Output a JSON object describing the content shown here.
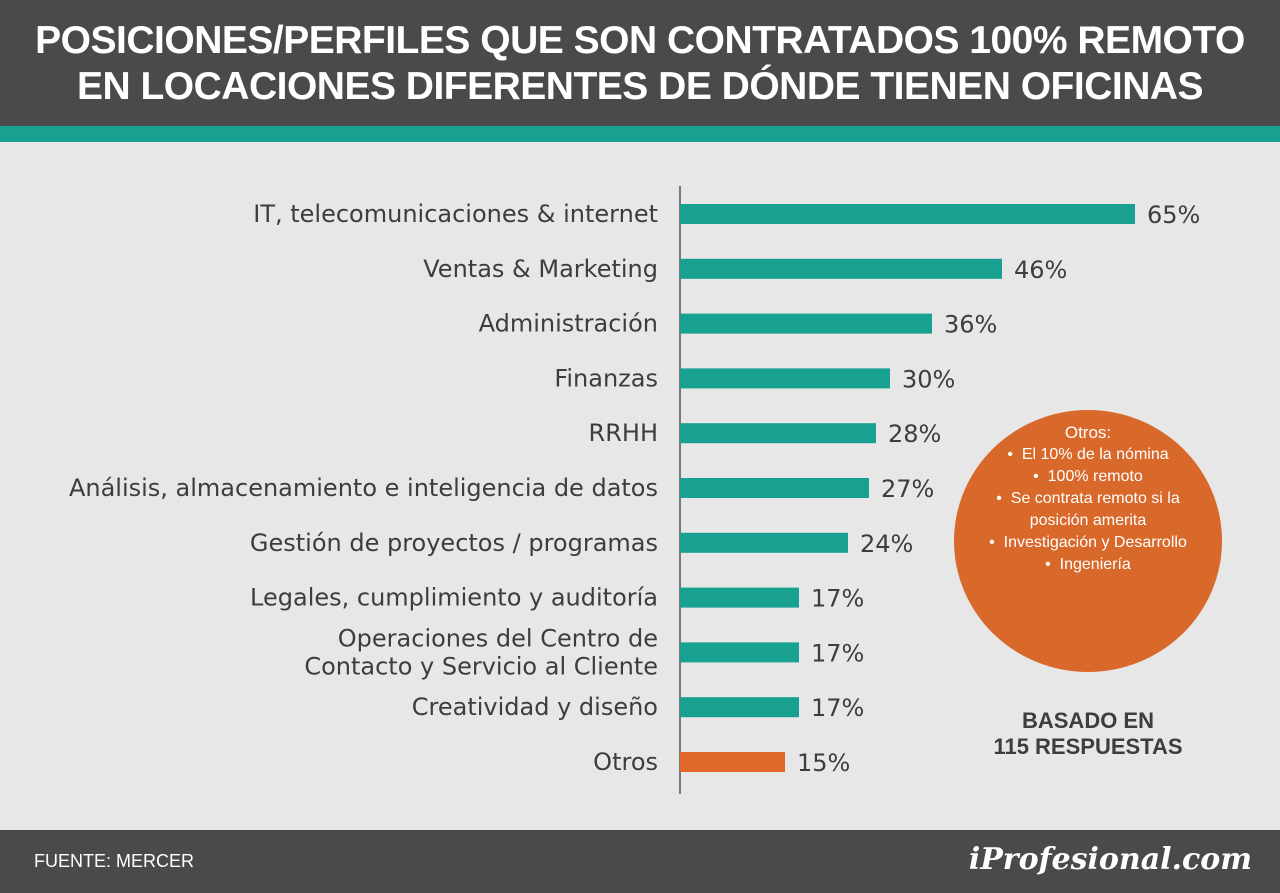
{
  "header": {
    "title_line1": "POSICIONES/PERFILES QUE SON CONTRATADOS 100% REMOTO",
    "title_line2": "EN LOCACIONES DIFERENTES DE DÓNDE TIENEN OFICINAS"
  },
  "chart_data": {
    "type": "bar",
    "orientation": "horizontal",
    "categories": [
      "IT, telecomunicaciones & internet",
      "Ventas & Marketing",
      "Administración",
      "Finanzas",
      "RRHH",
      "Análisis, almacenamiento e inteligencia de datos",
      "Gestión de proyectos / programas",
      "Legales, cumplimiento y auditoría",
      "Operaciones del Centro de Contacto y Servicio al Cliente",
      "Creatividad y diseño",
      "Otros"
    ],
    "category_lines": [
      [
        "IT, telecomunicaciones & internet"
      ],
      [
        "Ventas & Marketing"
      ],
      [
        "Administración"
      ],
      [
        "Finanzas"
      ],
      [
        "RRHH"
      ],
      [
        "Análisis, almacenamiento e inteligencia de datos"
      ],
      [
        "Gestión de proyectos / programas"
      ],
      [
        "Legales, cumplimiento y auditoría"
      ],
      [
        "Operaciones del Centro de",
        "Contacto y Servicio al Cliente"
      ],
      [
        "Creatividad y diseño"
      ],
      [
        "Otros"
      ]
    ],
    "values": [
      65,
      46,
      36,
      30,
      28,
      27,
      24,
      17,
      17,
      17,
      15
    ],
    "value_labels": [
      "65%",
      "46%",
      "36%",
      "30%",
      "28%",
      "27%",
      "24%",
      "17%",
      "17%",
      "17%",
      "15%"
    ],
    "bar_colors": [
      "#18a090",
      "#18a090",
      "#18a090",
      "#18a090",
      "#18a090",
      "#18a090",
      "#18a090",
      "#18a090",
      "#18a090",
      "#18a090",
      "#e0692a"
    ],
    "xlim": [
      0,
      65
    ],
    "grid": false,
    "legend": "none"
  },
  "callout": {
    "title": "Otros:",
    "items": [
      "El 10% de la nómina",
      "100% remoto",
      "Se contrata remoto si la posición amerita",
      "Investigación y Desarrollo",
      "Ingeniería"
    ],
    "color": "#d9692a"
  },
  "basis": {
    "line1": "BASADO EN",
    "line2": "115 RESPUESTAS"
  },
  "footer": {
    "source": "FUENTE: MERCER",
    "logo": "iProfesional.com"
  },
  "colors": {
    "header_bg": "#4a4a4c",
    "accent_teal": "#18a090",
    "accent_orange": "#e0692a",
    "page_bg": "#e7e7e8"
  }
}
